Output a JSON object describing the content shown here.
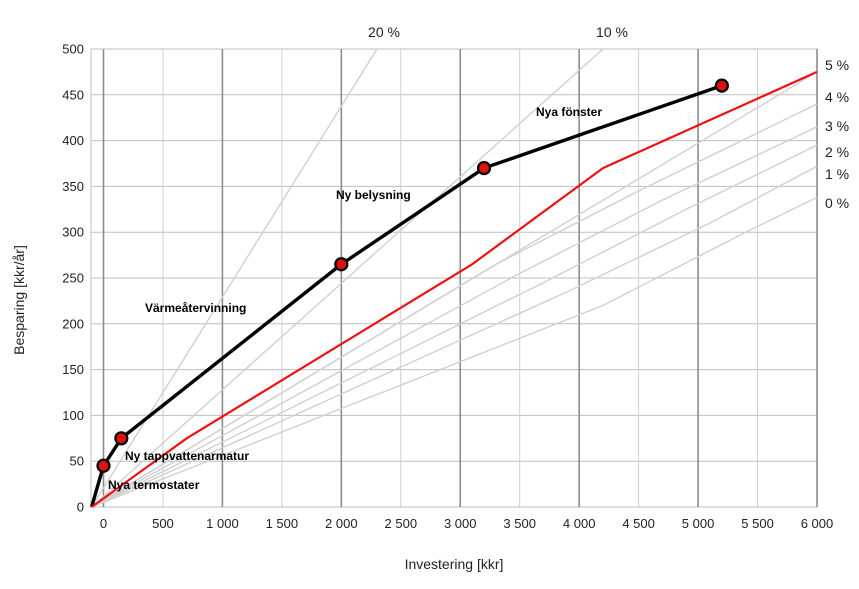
{
  "chart_data": {
    "type": "line",
    "xlabel": "Investering [kkr]",
    "ylabel": "Besparing [kkr/år]",
    "xlim": [
      -100,
      6000
    ],
    "ylim": [
      0,
      500
    ],
    "x_ticks": [
      0,
      500,
      1000,
      1500,
      2000,
      2500,
      3000,
      3500,
      4000,
      4500,
      5000,
      5500,
      6000
    ],
    "x_tick_labels": [
      "0",
      "500",
      "1 000",
      "1 500",
      "2 000",
      "2 500",
      "3 000",
      "3 500",
      "4 000",
      "4 500",
      "5 000",
      "5 500",
      "6 000"
    ],
    "y_ticks": [
      0,
      50,
      100,
      150,
      200,
      250,
      300,
      350,
      400,
      450,
      500
    ],
    "y_tick_labels": [
      "0",
      "50",
      "100",
      "150",
      "200",
      "250",
      "300",
      "350",
      "400",
      "450",
      "500"
    ],
    "grid": true,
    "measures": [
      {
        "label": "Nya termostater",
        "x": 0,
        "y": 45
      },
      {
        "label": "Ny tappvattenarmatur",
        "x": 150,
        "y": 75
      },
      {
        "label": "Värmeåtervinning",
        "x": 2000,
        "y": 265
      },
      {
        "label": "Ny belysning",
        "x": 3200,
        "y": 370
      },
      {
        "label": "Nya fönster",
        "x": 5200,
        "y": 460
      }
    ],
    "series": [
      {
        "x": [
          -100,
          0,
          150,
          2000,
          3200,
          5200
        ],
        "y": [
          0,
          45,
          75,
          265,
          370,
          460
        ],
        "color": "#000000"
      },
      {
        "x": [
          -100,
          700,
          3100,
          4200,
          6000
        ],
        "y": [
          0,
          75,
          265,
          370,
          475
        ],
        "color": "#ee1111"
      }
    ],
    "reference_lines": [
      {
        "label": "20 %",
        "x": [
          -100,
          2300
        ],
        "y": [
          0,
          500
        ],
        "color": "#d0d0d0"
      },
      {
        "label": "10 %",
        "x": [
          -100,
          4200
        ],
        "y": [
          0,
          500
        ],
        "color": "#d0d0d0"
      },
      {
        "label": "5 %",
        "x": [
          -100,
          6000
        ],
        "y": [
          0,
          475
        ],
        "color": "#d0d0d0"
      },
      {
        "label": "4 %",
        "x": [
          -100,
          3300,
          4500,
          6000
        ],
        "y": [
          0,
          265,
          345,
          440
        ],
        "color": "#d0d0d0"
      },
      {
        "label": "3 %",
        "x": [
          -100,
          3500,
          4700,
          6000
        ],
        "y": [
          0,
          255,
          335,
          415
        ],
        "color": "#d0d0d0"
      },
      {
        "label": "2 %",
        "x": [
          -100,
          3700,
          4900,
          6000
        ],
        "y": [
          0,
          245,
          325,
          395
        ],
        "color": "#d0d0d0"
      },
      {
        "label": "1 %",
        "x": [
          -100,
          3900,
          5100,
          6000
        ],
        "y": [
          0,
          235,
          310,
          372
        ],
        "color": "#d0d0d0"
      },
      {
        "label": "0 %",
        "x": [
          -100,
          4200,
          5400,
          6000
        ],
        "y": [
          0,
          220,
          300,
          338
        ],
        "color": "#d0d0d0"
      }
    ],
    "colors": {
      "grid": "#bfbfbf",
      "reference": "#d0d0d0",
      "measure_line": "#000000",
      "limit_line": "#ee1111",
      "marker_fill": "#e01010"
    }
  }
}
